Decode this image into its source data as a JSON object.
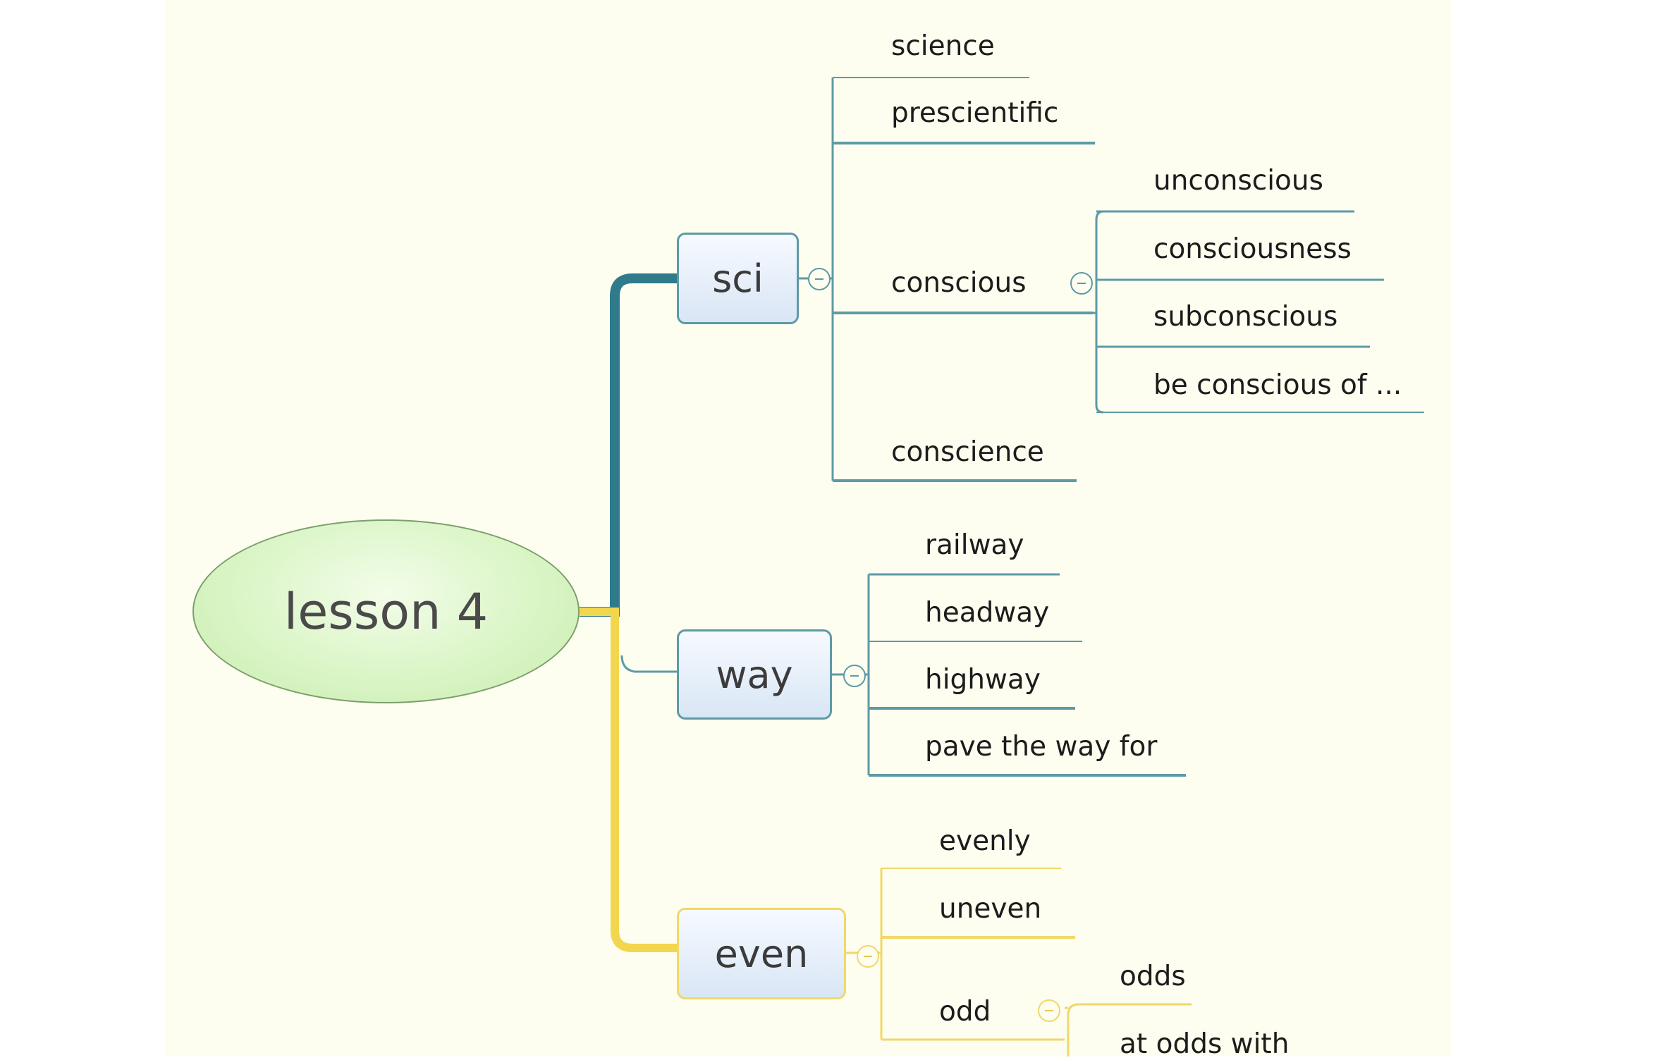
{
  "root": {
    "label": "lesson 4"
  },
  "branches": {
    "sci": {
      "label": "sci",
      "children": {
        "science": "science",
        "prescientific": "prescientific",
        "conscious": {
          "label": "conscious",
          "children": [
            "unconscious",
            "consciousness",
            "subconscious",
            "be conscious of ..."
          ]
        },
        "conscience": "conscience"
      }
    },
    "way": {
      "label": "way",
      "children": [
        "railway",
        "headway",
        "highway",
        "pave the way for"
      ]
    },
    "even": {
      "label": "even",
      "children": {
        "evenly": "evenly",
        "uneven": "uneven",
        "odd": {
          "label": "odd",
          "children": [
            "odds",
            "at odds with"
          ]
        }
      }
    }
  },
  "colors": {
    "teal_branch": "#2f7b8c",
    "teal_line": "#5d9aa6",
    "yellow_branch": "#f2d64d",
    "yellow_line": "#f1d868",
    "root_fill": "#daf5c6",
    "topic_fill": "#e4eef9",
    "background": "#fdfdf0"
  },
  "icons": {
    "collapse": "collapse-minus-icon"
  }
}
